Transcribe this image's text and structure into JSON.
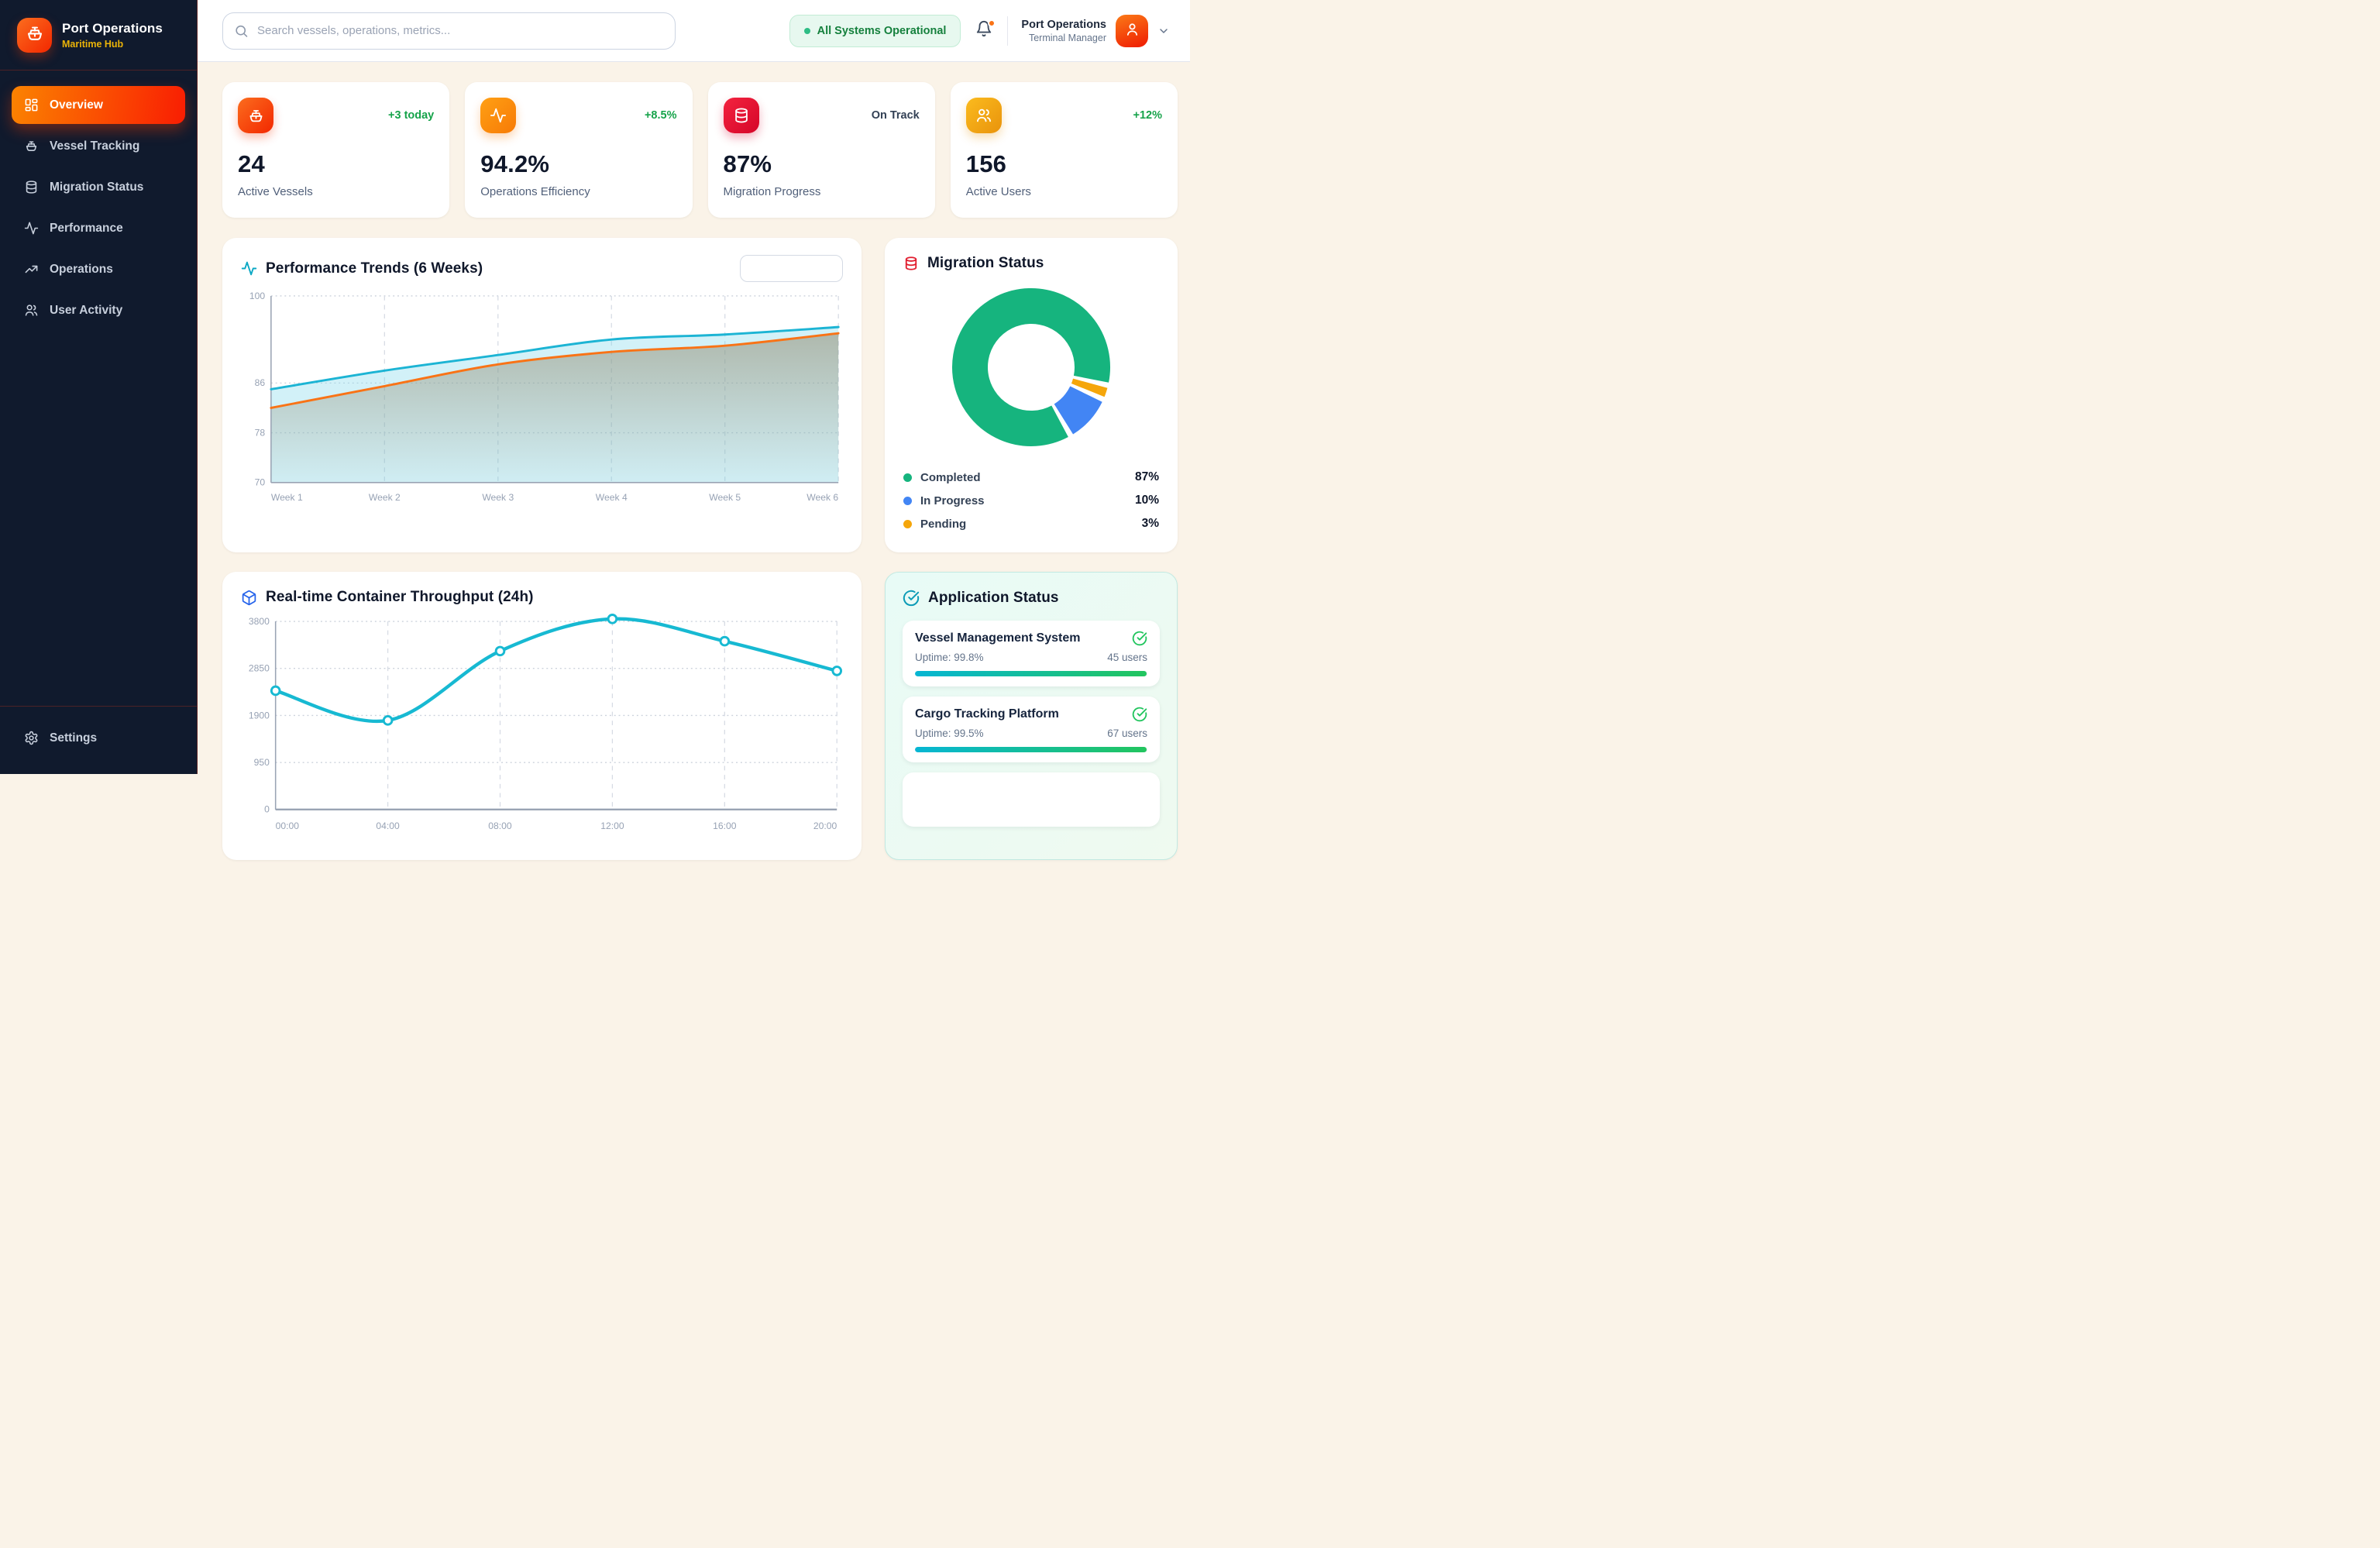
{
  "sidebar": {
    "brand": {
      "title": "Port Operations",
      "subtitle": "Maritime Hub"
    },
    "nav": [
      {
        "label": "Overview",
        "active": true
      },
      {
        "label": "Vessel Tracking",
        "active": false
      },
      {
        "label": "Migration Status",
        "active": false
      },
      {
        "label": "Performance",
        "active": false
      },
      {
        "label": "Operations",
        "active": false
      },
      {
        "label": "User Activity",
        "active": false
      }
    ],
    "settings_label": "Settings"
  },
  "header": {
    "search_placeholder": "Search vessels, operations, metrics...",
    "status_badge": "All Systems Operational",
    "user": {
      "name": "Port Operations",
      "role": "Terminal Manager"
    }
  },
  "stats": [
    {
      "value": "24",
      "label": "Active Vessels",
      "delta": "+3 today",
      "delta_type": "positive"
    },
    {
      "value": "94.2%",
      "label": "Operations Efficiency",
      "delta": "+8.5%",
      "delta_type": "positive"
    },
    {
      "value": "87%",
      "label": "Migration Progress",
      "delta": "On Track",
      "delta_type": "neutral"
    },
    {
      "value": "156",
      "label": "Active Users",
      "delta": "+12%",
      "delta_type": "positive"
    }
  ],
  "chart_data": [
    {
      "id": "performance_trends",
      "type": "area",
      "title": "Performance Trends (6 Weeks)",
      "categories": [
        "Week 1",
        "Week 2",
        "Week 3",
        "Week 4",
        "Week 5",
        "Week 6"
      ],
      "series": [
        {
          "name": "cyan-series",
          "color": "#1cb4d4",
          "fill": "rgba(125,214,235,0.35)",
          "values": [
            85,
            88,
            90.5,
            93,
            93.8,
            95
          ]
        },
        {
          "name": "orange-series",
          "color": "#f97316",
          "fill_top": "rgba(140,129,99,0.50)",
          "fill_bottom": "rgba(140,129,99,0.03)",
          "values": [
            82,
            85.5,
            89,
            91,
            92,
            94
          ]
        }
      ],
      "ylim": [
        70,
        100
      ],
      "yticks": [
        100,
        86,
        78,
        70
      ],
      "grid": true,
      "legend_position": "none"
    },
    {
      "id": "migration_status",
      "type": "pie",
      "donut": true,
      "title": "Migration Status",
      "slices": [
        {
          "label": "Completed",
          "value": 87,
          "display": "87%",
          "color": "#16b47e"
        },
        {
          "label": "In Progress",
          "value": 10,
          "display": "10%",
          "color": "#4285f4"
        },
        {
          "label": "Pending",
          "value": 3,
          "display": "3%",
          "color": "#f5a60b"
        }
      ],
      "start_angle_deg": 150,
      "clockwise_order": [
        "Completed",
        "Pending",
        "In Progress"
      ],
      "legend_position": "bottom"
    },
    {
      "id": "container_throughput",
      "type": "line",
      "title": "Real-time Container Throughput (24h)",
      "categories": [
        "00:00",
        "04:00",
        "08:00",
        "12:00",
        "16:00",
        "20:00"
      ],
      "values": [
        2400,
        1800,
        3200,
        3850,
        3400,
        2800
      ],
      "color": "#17b9d2",
      "markers": true,
      "ylim": [
        0,
        3800
      ],
      "yticks": [
        3800,
        2850,
        1900,
        950,
        0
      ],
      "grid": true
    }
  ],
  "app_status": {
    "title": "Application Status",
    "apps": [
      {
        "name": "Vessel Management System",
        "uptime_label": "Uptime: 99.8%",
        "users_label": "45 users",
        "uptime_pct": 99.8
      },
      {
        "name": "Cargo Tracking Platform",
        "uptime_label": "Uptime: 99.5%",
        "users_label": "67 users",
        "uptime_pct": 99.5
      }
    ]
  },
  "colors": {
    "sidebar_bg": "#101a2d",
    "content_bg": "#faf3e8",
    "accent_gradient_start": "#fb8301",
    "accent_gradient_end": "#f91d02",
    "positive_green": "#16a34a",
    "badge_green": "#15803d",
    "donut_completed": "#16b47e",
    "donut_in_progress": "#4285f4",
    "donut_pending": "#f5a60b",
    "chart_cyan": "#17b9d2",
    "chart_orange": "#f97316"
  }
}
